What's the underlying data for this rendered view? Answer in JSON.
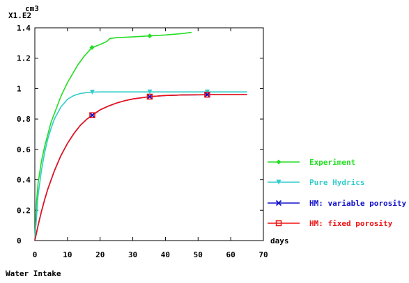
{
  "chart_data": {
    "type": "line",
    "caption": "Water Intake",
    "y_unit": "cm3",
    "y_multiplier": "X1.E2",
    "x_unit": "days",
    "xlim": [
      0,
      70
    ],
    "ylim": [
      0,
      1.4
    ],
    "x_ticks": [
      0,
      10,
      20,
      30,
      40,
      50,
      60,
      70
    ],
    "x_tick_labels": [
      "0",
      "10",
      "20",
      "30",
      "40",
      "50",
      "60",
      "70"
    ],
    "y_ticks": [
      0,
      0.2,
      0.4,
      0.6,
      0.8,
      1.0,
      1.2,
      1.4
    ],
    "y_tick_labels": [
      "0",
      "0.2",
      "0.4",
      "0.6",
      "0.8",
      "1",
      "1.2",
      "1.4"
    ],
    "grid": false,
    "legend_position": "right",
    "series": [
      {
        "name": "Experiment",
        "color": "#22dd22",
        "marker": "diamond",
        "x": [
          0,
          0.5,
          1,
          2,
          3,
          5,
          8,
          10,
          13,
          15,
          17.5,
          20,
          22,
          23,
          25,
          30,
          35.2,
          40,
          45,
          48
        ],
        "y": [
          0,
          0.25,
          0.38,
          0.52,
          0.62,
          0.78,
          0.95,
          1.04,
          1.15,
          1.21,
          1.27,
          1.29,
          1.31,
          1.33,
          1.335,
          1.34,
          1.347,
          1.353,
          1.362,
          1.37
        ],
        "marker_x": [
          17.5,
          35.2
        ],
        "marker_y": [
          1.27,
          1.347
        ]
      },
      {
        "name": "Pure Hydrics",
        "color": "#33cccc",
        "marker": "triangle-down",
        "x": [
          0,
          1,
          2,
          3,
          4,
          5,
          6,
          8,
          10,
          12,
          14,
          16,
          17.6,
          20,
          25,
          30,
          35.2,
          40,
          45,
          50,
          52.8,
          60,
          65
        ],
        "y": [
          0,
          0.3,
          0.46,
          0.58,
          0.67,
          0.74,
          0.8,
          0.88,
          0.93,
          0.955,
          0.968,
          0.974,
          0.977,
          0.978,
          0.978,
          0.978,
          0.978,
          0.978,
          0.978,
          0.978,
          0.978,
          0.978,
          0.978
        ],
        "marker_x": [
          17.6,
          35.2,
          52.8
        ],
        "marker_y": [
          0.977,
          0.978,
          0.978
        ]
      },
      {
        "name": "HM: variable porosity",
        "color": "#1111cc",
        "marker": "x",
        "x": [
          0,
          1,
          2,
          3,
          4,
          6,
          8,
          10,
          12,
          14,
          16,
          17.6,
          20,
          22.5,
          25,
          27.5,
          30,
          35.2,
          40,
          45,
          52.8,
          60,
          65
        ],
        "y": [
          0,
          0.1,
          0.19,
          0.27,
          0.34,
          0.46,
          0.56,
          0.64,
          0.705,
          0.76,
          0.8,
          0.825,
          0.86,
          0.885,
          0.905,
          0.92,
          0.932,
          0.947,
          0.955,
          0.958,
          0.96,
          0.96,
          0.96
        ],
        "marker_x": [
          17.6,
          35.2,
          52.8
        ],
        "marker_y": [
          0.825,
          0.947,
          0.96
        ]
      },
      {
        "name": "HM: fixed porosity",
        "color": "#ee1111",
        "marker": "square",
        "x": [
          0,
          1,
          2,
          3,
          4,
          6,
          8,
          10,
          12,
          14,
          16,
          17.6,
          20,
          22.5,
          25,
          27.5,
          30,
          35.2,
          40,
          45,
          52.8,
          60,
          65
        ],
        "y": [
          0,
          0.1,
          0.19,
          0.27,
          0.34,
          0.46,
          0.56,
          0.64,
          0.705,
          0.76,
          0.8,
          0.825,
          0.86,
          0.885,
          0.905,
          0.92,
          0.932,
          0.947,
          0.955,
          0.958,
          0.96,
          0.96,
          0.96
        ],
        "marker_x": [
          17.6,
          35.2,
          52.8
        ],
        "marker_y": [
          0.825,
          0.947,
          0.96
        ]
      }
    ]
  }
}
